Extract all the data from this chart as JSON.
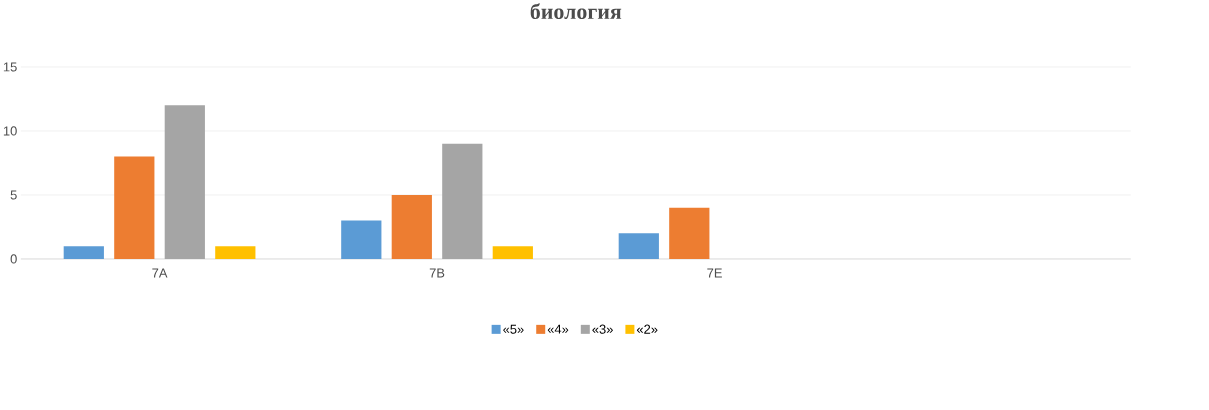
{
  "chart_data": {
    "type": "bar",
    "title": "биология",
    "categories": [
      "7А",
      "7В",
      "7Е",
      null
    ],
    "series": [
      {
        "name": "«5»",
        "color": "#5b9bd5",
        "values": [
          1,
          3,
          2,
          null
        ]
      },
      {
        "name": "«4»",
        "color": "#ed7d31",
        "values": [
          8,
          5,
          4,
          null
        ]
      },
      {
        "name": "«3»",
        "color": "#a5a5a5",
        "values": [
          12,
          9,
          0,
          null
        ]
      },
      {
        "name": "«2»",
        "color": "#ffc000",
        "values": [
          1,
          1,
          0,
          null
        ]
      }
    ],
    "ylim": [
      0,
      15
    ],
    "yticks": [
      0,
      5,
      10,
      15
    ],
    "grid": "y",
    "legend": "bottom"
  }
}
